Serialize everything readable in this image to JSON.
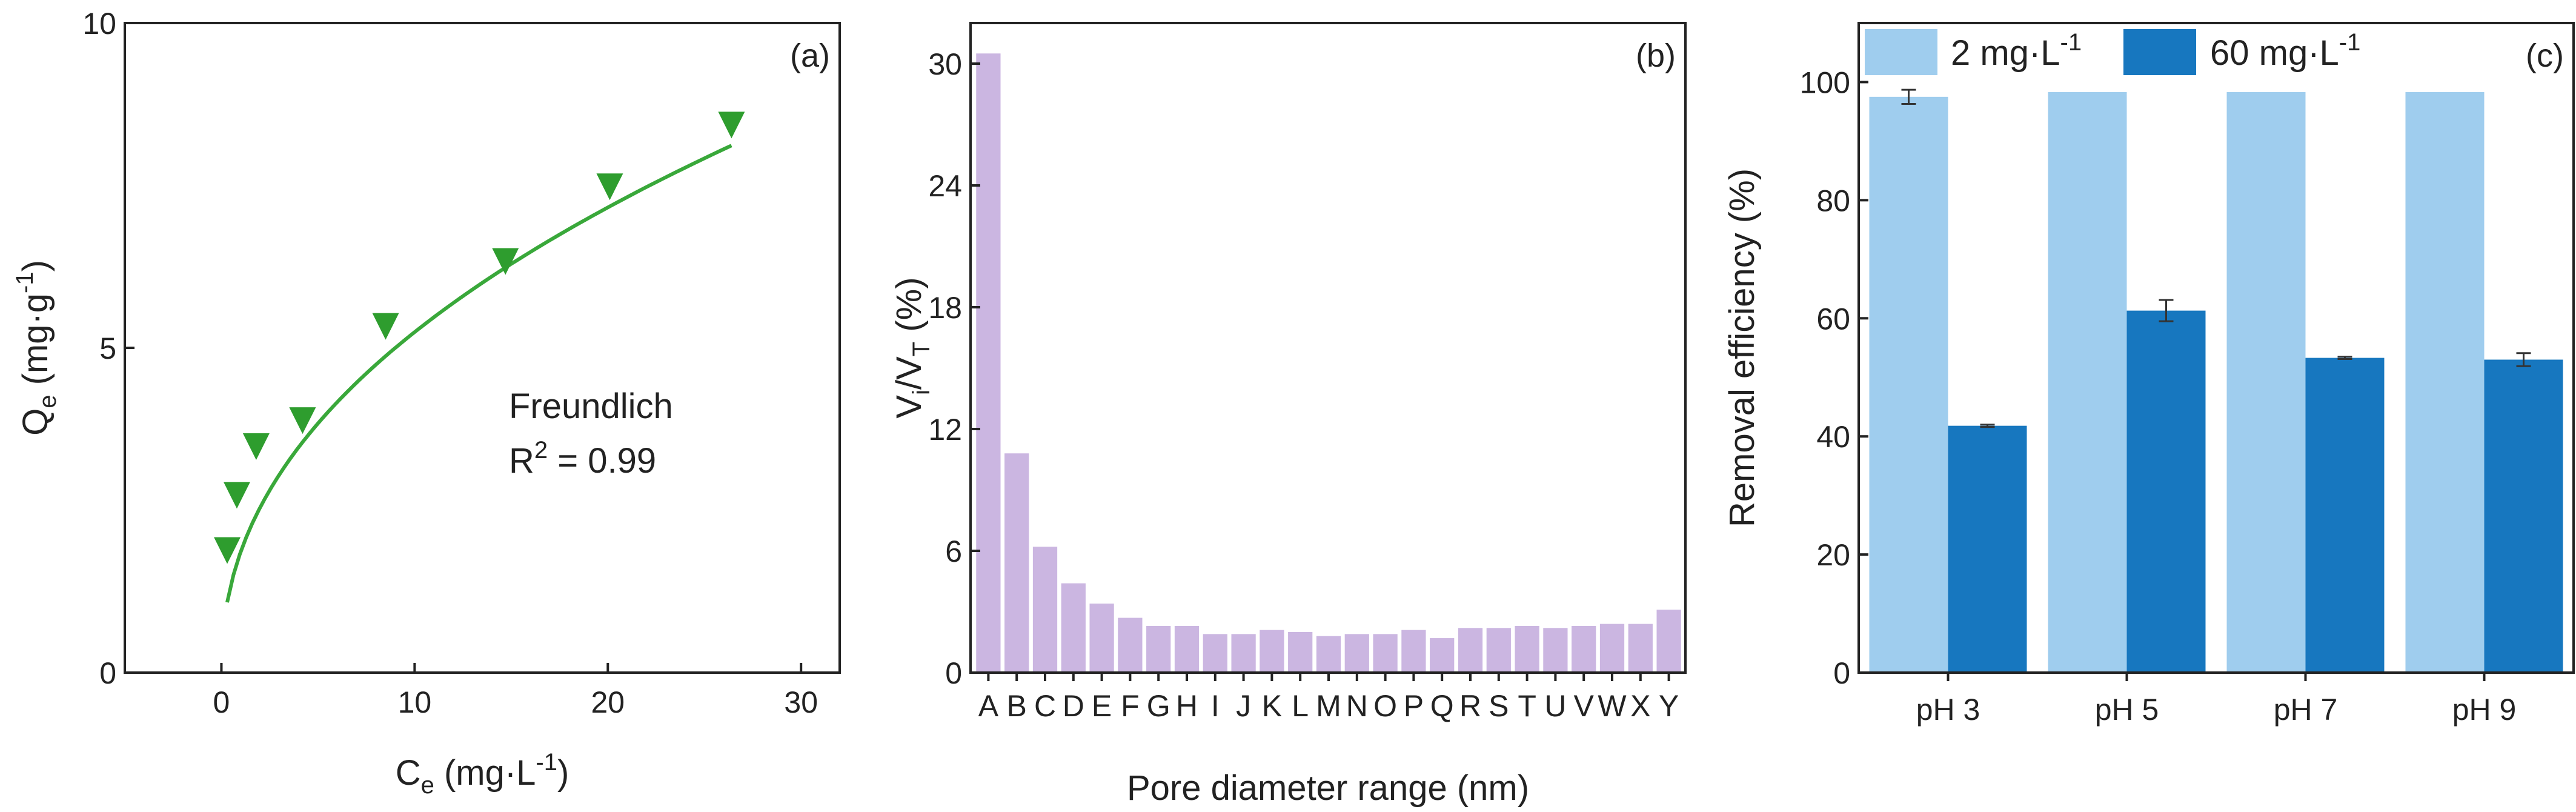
{
  "colors": {
    "curve": "#39a83a",
    "marker": "#2e9d2e",
    "pore_bar": "#cbb6e1",
    "light_bar": "#9fcdee",
    "dark_bar": "#1777bf",
    "axis": "#222222"
  },
  "chart_data": [
    {
      "type": "scatter",
      "panel_label": "(a)",
      "xlabel": {
        "main": "C",
        "sub": "e",
        "rest": " (mg·L",
        "sup": "-1",
        "end": ")"
      },
      "ylabel": {
        "main": "Q",
        "sub": "e",
        "rest": " (mg·g",
        "sup": "-1",
        "end": ")"
      },
      "xlim": [
        -5,
        32
      ],
      "ylim": [
        0,
        10
      ],
      "xticks": [
        "0",
        "10",
        "20",
        "30"
      ],
      "yticks": [
        "0",
        "5",
        "10"
      ],
      "marker_shape": "down-triangle",
      "points": [
        [
          0.3,
          1.9
        ],
        [
          0.8,
          2.75
        ],
        [
          1.8,
          3.5
        ],
        [
          4.2,
          3.9
        ],
        [
          8.5,
          5.35
        ],
        [
          14.7,
          6.35
        ],
        [
          20.1,
          7.5
        ],
        [
          26.4,
          8.45
        ]
      ],
      "fit": {
        "model": "Freundlich",
        "K": 1.86,
        "n_inv": 0.45,
        "x_range": [
          0.3,
          26.4
        ]
      },
      "annotation_title": "Freundlich",
      "annotation_r2_prefix": "R",
      "annotation_r2_sup": "2",
      "annotation_r2_value": " = 0.99"
    },
    {
      "type": "bar",
      "panel_label": "(b)",
      "xlabel": "Pore diameter range (nm)",
      "ylabel": {
        "main": "V",
        "sub1": "i",
        "mid": "/V",
        "sub2": "T",
        "end": " (%)"
      },
      "ylim": [
        0,
        32
      ],
      "yticks": [
        "0",
        "6",
        "12",
        "18",
        "24",
        "30"
      ],
      "categories": [
        "A",
        "B",
        "C",
        "D",
        "E",
        "F",
        "G",
        "H",
        "I",
        "J",
        "K",
        "L",
        "M",
        "N",
        "O",
        "P",
        "Q",
        "R",
        "S",
        "T",
        "U",
        "V",
        "W",
        "X",
        "Y"
      ],
      "values": [
        30.5,
        10.8,
        6.2,
        4.4,
        3.4,
        2.7,
        2.3,
        2.3,
        1.9,
        1.9,
        2.1,
        2.0,
        1.8,
        1.9,
        1.9,
        2.1,
        1.7,
        2.2,
        2.2,
        2.3,
        2.2,
        2.3,
        2.4,
        2.4,
        3.1
      ]
    },
    {
      "type": "bar",
      "panel_label": "(c)",
      "xlabel": "",
      "ylabel": "Removal efficiency (%)",
      "ylim": [
        0,
        110
      ],
      "yticks": [
        "0",
        "20",
        "40",
        "60",
        "80",
        "100"
      ],
      "categories": [
        "pH 3",
        "pH 5",
        "pH 7",
        "pH 9"
      ],
      "legend_position": "top",
      "series": [
        {
          "name_main": "2 mg·L",
          "name_sup": "-1",
          "values": [
            97.5,
            98.3,
            98.3,
            98.3
          ],
          "errors": [
            1.2,
            0,
            0,
            0
          ]
        },
        {
          "name_main": "60 mg·L",
          "name_sup": "-1",
          "values": [
            41.8,
            61.3,
            53.3,
            53.0
          ],
          "errors": [
            0.2,
            1.8,
            0.2,
            1.1
          ]
        }
      ]
    }
  ]
}
